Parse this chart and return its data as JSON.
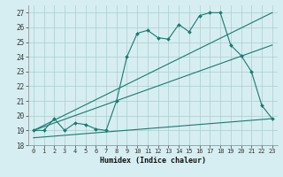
{
  "title": "",
  "xlabel": "Humidex (Indice chaleur)",
  "bg_color": "#d6eef2",
  "grid_color": "#aacccc",
  "line_color": "#1a7a6e",
  "xlim": [
    -0.5,
    23.5
  ],
  "ylim": [
    18,
    27.5
  ],
  "xticks": [
    0,
    1,
    2,
    3,
    4,
    5,
    6,
    7,
    8,
    9,
    10,
    11,
    12,
    13,
    14,
    15,
    16,
    17,
    18,
    19,
    20,
    21,
    22,
    23
  ],
  "yticks": [
    18,
    19,
    20,
    21,
    22,
    23,
    24,
    25,
    26,
    27
  ],
  "line1_x": [
    0,
    1,
    2,
    3,
    4,
    5,
    6,
    7,
    8,
    9,
    10,
    11,
    12,
    13,
    14,
    15,
    16,
    17,
    18,
    19,
    20,
    21,
    22,
    23
  ],
  "line1_y": [
    19.0,
    19.0,
    19.8,
    19.0,
    19.5,
    19.4,
    19.1,
    19.0,
    21.0,
    24.0,
    25.6,
    25.8,
    25.3,
    25.2,
    26.2,
    25.7,
    26.8,
    27.0,
    27.0,
    24.8,
    24.1,
    23.0,
    20.7,
    19.8
  ],
  "line2_x": [
    0,
    23
  ],
  "line2_y": [
    19.0,
    27.0
  ],
  "line3_x": [
    0,
    23
  ],
  "line3_y": [
    19.0,
    24.8
  ],
  "line4_x": [
    0,
    23
  ],
  "line4_y": [
    18.5,
    19.8
  ]
}
